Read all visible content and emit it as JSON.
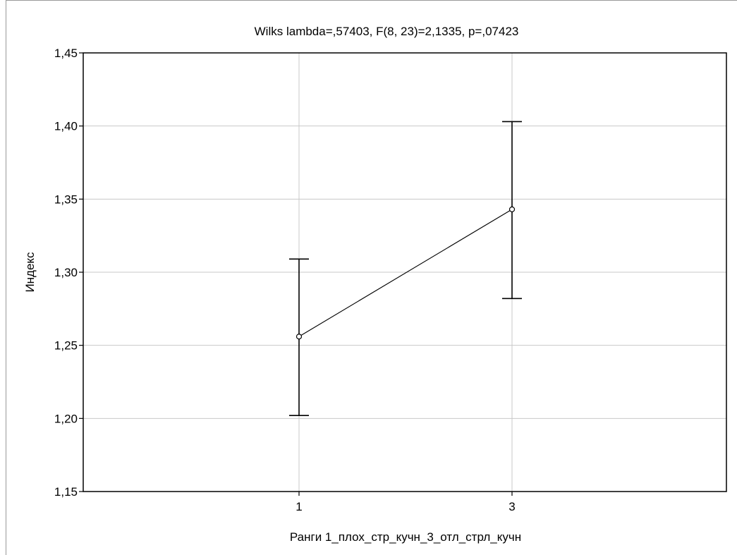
{
  "chart_data": {
    "type": "line",
    "title": "Wilks lambda=,57403, F(8, 23)=2,1335, p=,07423",
    "xlabel": "Ранги 1_плох_стр_кучн_3_отл_стрл_кучн",
    "ylabel": "Индекс",
    "categories": [
      "1",
      "3"
    ],
    "series": [
      {
        "values": [
          1.256,
          1.343
        ],
        "error_low": [
          1.202,
          1.282
        ],
        "error_high": [
          1.309,
          1.403
        ]
      }
    ],
    "ylim": [
      1.15,
      1.45
    ],
    "yticks": [
      1.15,
      1.2,
      1.25,
      1.3,
      1.35,
      1.4,
      1.45
    ],
    "ytick_labels": [
      "1,15",
      "1,20",
      "1,25",
      "1,30",
      "1,35",
      "1,40",
      "1,45"
    ],
    "grid": true,
    "colors": {
      "grid": "#c8c8c8",
      "line": "#000000",
      "axis": "#000000"
    }
  }
}
